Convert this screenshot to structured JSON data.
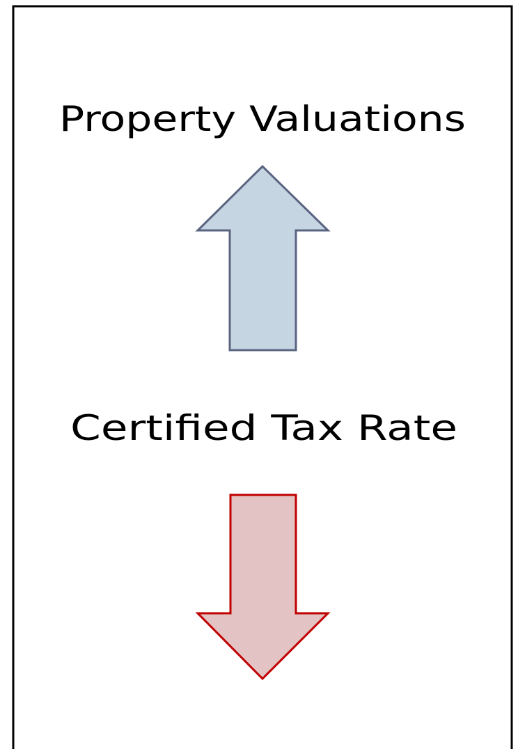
{
  "labels": {
    "top": "Property Valuations",
    "bottom": "Certified Tax Rate"
  }
}
